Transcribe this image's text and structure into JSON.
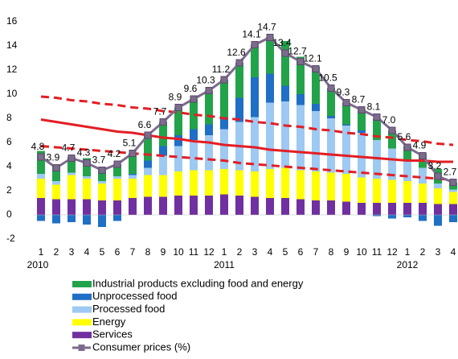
{
  "chart_data": {
    "type": "stacked-bar-line",
    "categories": [
      "1",
      "2",
      "3",
      "4",
      "5",
      "6",
      "7",
      "8",
      "9",
      "10",
      "11",
      "12",
      "1",
      "2",
      "3",
      "4",
      "5",
      "6",
      "7",
      "8",
      "9",
      "10",
      "11",
      "12",
      "1",
      "2",
      "3",
      "4"
    ],
    "groups": [
      "2010",
      "2011",
      "2012"
    ],
    "ylim": [
      -2,
      16
    ],
    "yticks": [
      -2,
      0,
      2,
      4,
      6,
      8,
      10,
      12,
      14,
      16
    ],
    "series": [
      {
        "name": "Industrial products excluding food and energy",
        "kind": "bar",
        "color": "#22a34a",
        "values": [
          1.9,
          1.2,
          1.3,
          1.5,
          1.1,
          1.0,
          1.7,
          2.1,
          2.0,
          2.3,
          2.5,
          2.8,
          3.1,
          2.9,
          2.7,
          3.0,
          3.7,
          3.1,
          3.1,
          2.3,
          1.8,
          1.7,
          1.8,
          1.5,
          1.1,
          1.2,
          1.2,
          0.6
        ]
      },
      {
        "name": "Unprocessed food",
        "kind": "bar",
        "color": "#1f6fc6",
        "values": [
          -0.5,
          -0.7,
          -0.6,
          -0.8,
          -1.0,
          -0.5,
          0.1,
          0.6,
          0.8,
          0.9,
          0.9,
          0.9,
          1.0,
          2.0,
          3.3,
          2.4,
          1.3,
          0.9,
          0.6,
          0.2,
          0.1,
          0.2,
          -0.1,
          -0.3,
          -0.2,
          -0.5,
          -0.9,
          -0.6
        ]
      },
      {
        "name": "Processed food",
        "kind": "bar",
        "color": "#9dc9f2",
        "values": [
          0.4,
          0.3,
          0.2,
          0.2,
          0.2,
          0.2,
          0.3,
          0.6,
          1.6,
          2.1,
          2.5,
          2.9,
          3.3,
          4.0,
          4.5,
          5.5,
          5.5,
          5.4,
          5.0,
          4.5,
          4.0,
          3.7,
          3.2,
          2.6,
          1.8,
          1.3,
          0.4,
          0.2
        ]
      },
      {
        "name": "Energy",
        "kind": "bar",
        "color": "#ffff00",
        "values": [
          1.6,
          1.2,
          2.0,
          1.7,
          1.4,
          1.8,
          1.6,
          1.8,
          1.8,
          2.0,
          2.1,
          2.1,
          2.1,
          2.1,
          2.1,
          2.4,
          2.5,
          2.4,
          2.4,
          2.3,
          2.3,
          2.1,
          2.0,
          1.9,
          1.8,
          1.6,
          1.3,
          1.0
        ]
      },
      {
        "name": "Services",
        "kind": "bar",
        "color": "#7030a0",
        "values": [
          1.4,
          1.3,
          1.3,
          1.3,
          1.2,
          1.2,
          1.4,
          1.5,
          1.5,
          1.6,
          1.6,
          1.6,
          1.7,
          1.6,
          1.5,
          1.4,
          1.4,
          1.3,
          1.2,
          1.2,
          1.1,
          1.0,
          1.0,
          1.0,
          1.0,
          1.0,
          0.9,
          0.9
        ]
      },
      {
        "name": "Consumer prices (%)",
        "kind": "line",
        "color": "#7d6b8d",
        "values": [
          4.8,
          3.9,
          4.7,
          4.3,
          3.7,
          4.2,
          5.1,
          6.6,
          7.7,
          8.9,
          9.6,
          10.3,
          11.2,
          12.6,
          14.1,
          14.7,
          13.4,
          12.7,
          12.1,
          10.5,
          9.3,
          8.7,
          8.1,
          7.0,
          5.6,
          4.9,
          3.2,
          2.7
        ],
        "value_labels": [
          "4.8",
          "3.9",
          "4.7",
          "4.3",
          "3.7",
          "4.2",
          "5.1",
          "6.6",
          "7.7",
          "8.9",
          "9.6",
          "10.3",
          "11.2",
          "12.6",
          "14.1",
          "14.7",
          "13.4",
          "12.7",
          "12.1",
          "10.5",
          "9.3",
          "8.7",
          "8.1",
          "7.0",
          "5.6",
          "4.9",
          "3.2",
          "2.7"
        ]
      }
    ],
    "trend_lines": [
      {
        "color": "#e31e24",
        "dashed": true,
        "values": [
          9.8,
          9.7,
          9.5,
          9.4,
          9.2,
          9.1,
          8.9,
          8.8,
          8.6,
          8.5,
          8.3,
          8.2,
          8.0,
          7.9,
          7.7,
          7.6,
          7.4,
          7.3,
          7.1,
          7.0,
          6.8,
          6.7,
          6.5,
          6.4,
          6.2,
          6.1,
          5.9,
          5.8
        ]
      },
      {
        "color": "#e31e24",
        "dashed": false,
        "values": [
          7.9,
          7.7,
          7.5,
          7.3,
          7.1,
          6.9,
          6.8,
          6.6,
          6.4,
          6.3,
          6.1,
          6.0,
          5.8,
          5.7,
          5.6,
          5.4,
          5.3,
          5.2,
          5.1,
          5.0,
          4.9,
          4.8,
          4.7,
          4.6,
          4.5,
          4.5,
          4.4,
          4.4
        ]
      },
      {
        "color": "#e31e24",
        "dashed": true,
        "values": [
          5.7,
          5.6,
          5.5,
          5.4,
          5.3,
          5.2,
          5.1,
          5.0,
          4.9,
          4.8,
          4.7,
          4.6,
          4.5,
          4.3,
          4.2,
          4.1,
          4.0,
          3.9,
          3.8,
          3.7,
          3.6,
          3.5,
          3.4,
          3.3,
          3.2,
          3.1,
          3.0,
          2.9
        ]
      }
    ]
  }
}
